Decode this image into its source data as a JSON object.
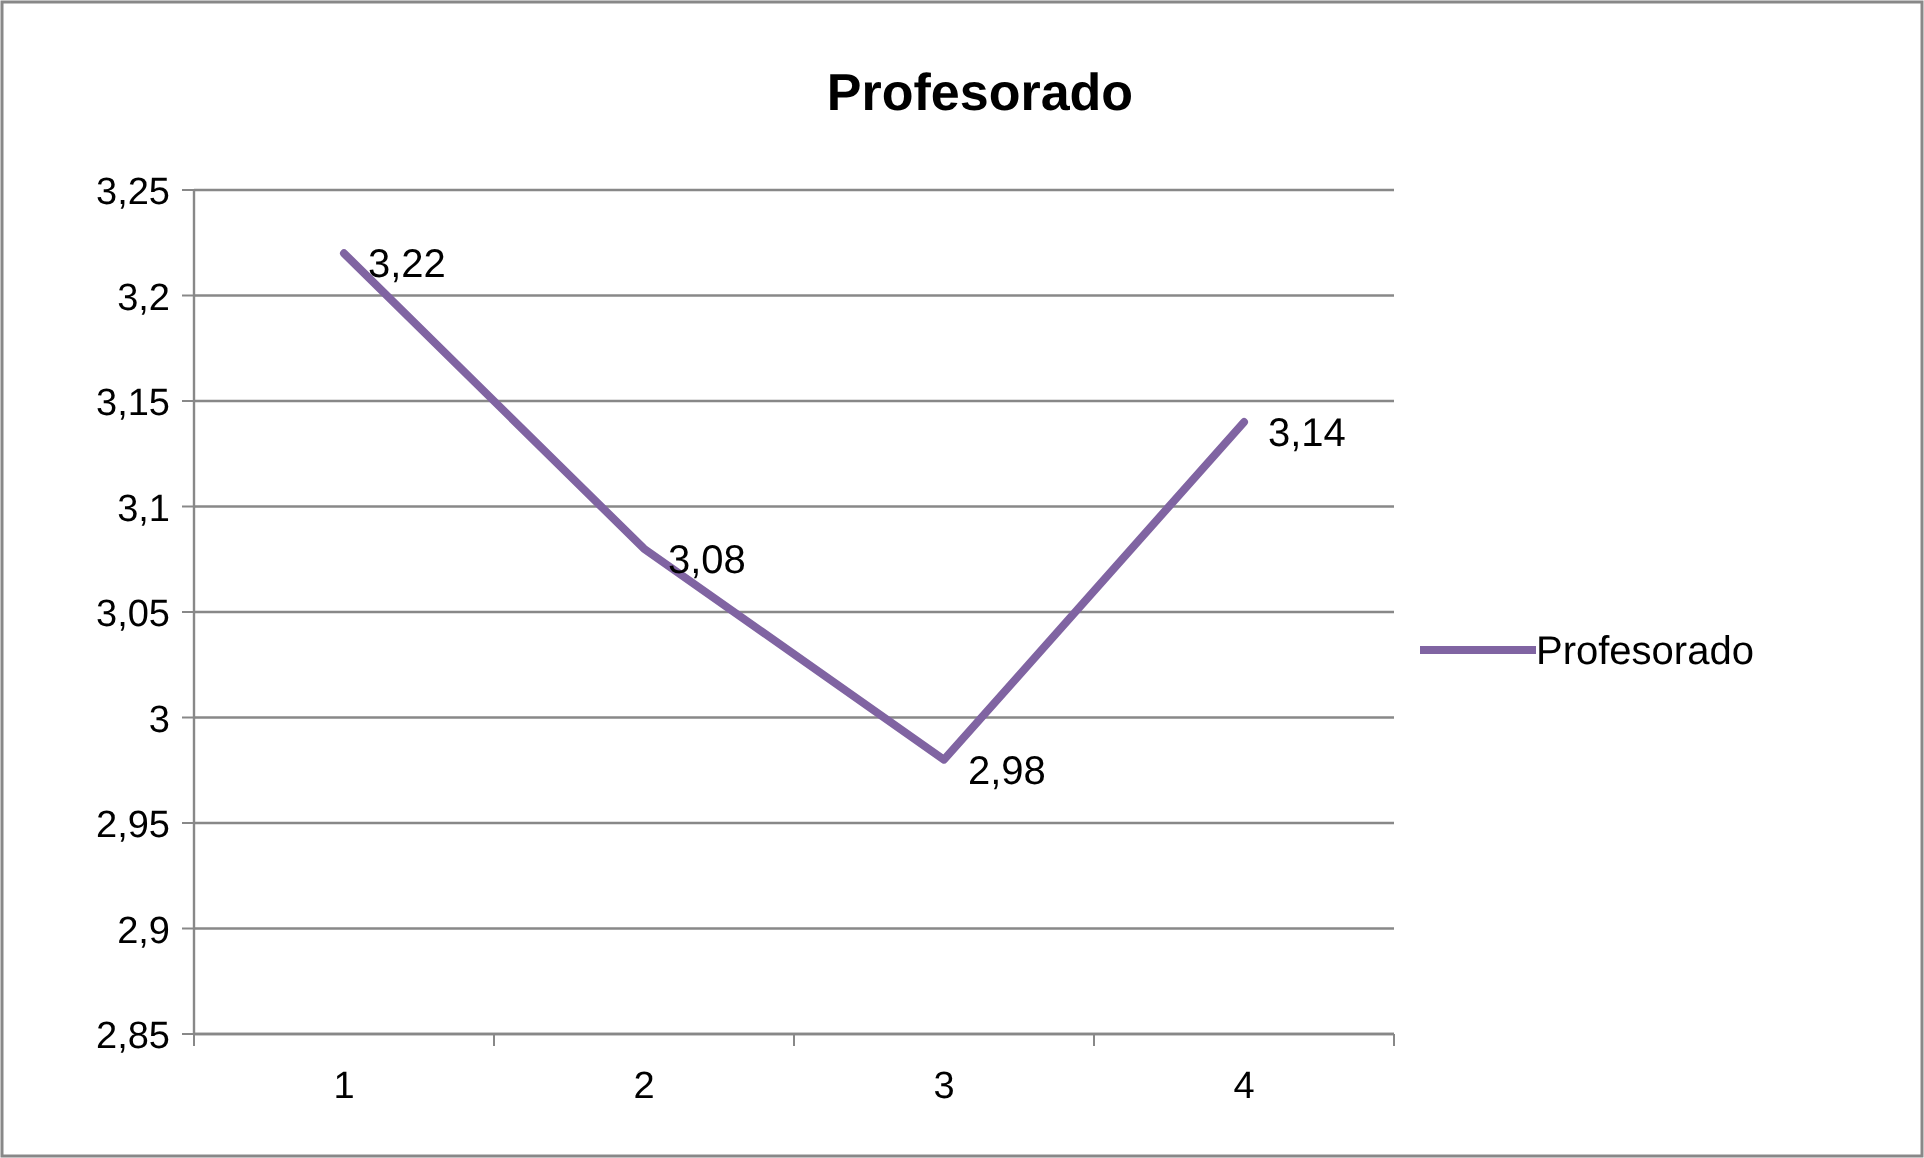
{
  "chart_data": {
    "type": "line",
    "title": "Profesorado",
    "categories": [
      "1",
      "2",
      "3",
      "4"
    ],
    "series": [
      {
        "name": "Profesorado",
        "color": "#8064a2",
        "values": [
          3.22,
          3.08,
          2.98,
          3.14
        ],
        "value_labels": [
          "3,22",
          "3,08",
          "2,98",
          "3,14"
        ]
      }
    ],
    "ylim": [
      2.85,
      3.25
    ],
    "yticks": [
      {
        "value": 2.85,
        "label": "2,85"
      },
      {
        "value": 2.9,
        "label": "2,9"
      },
      {
        "value": 2.95,
        "label": "2,95"
      },
      3,
      {
        "value": 3.05,
        "label": "3,05"
      },
      {
        "value": 3.1,
        "label": "3,1"
      },
      {
        "value": 3.15,
        "label": "3,15"
      },
      {
        "value": 3.2,
        "label": "3,2"
      },
      {
        "value": 3.25,
        "label": "3,25"
      }
    ],
    "grid": "y",
    "legend": "right",
    "marker": "none",
    "line_style": "solid"
  }
}
